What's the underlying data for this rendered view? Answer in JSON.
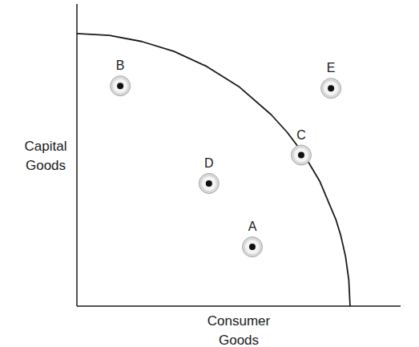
{
  "chart_data": {
    "type": "scatter",
    "x_label": "Consumer Goods",
    "y_label": "Capital Goods",
    "xlim": [
      0,
      10
    ],
    "ylim": [
      0,
      10
    ],
    "tick_labels": false,
    "grid": false,
    "series": [
      {
        "type": "line",
        "line_style": "solid",
        "color": "#1a1a1a",
        "x": [
          0,
          1,
          2,
          3,
          4,
          5,
          6,
          6.5,
          7,
          7.5,
          8,
          8.15,
          8.3,
          8.4,
          8.44
        ],
        "values": [
          9.02,
          8.96,
          8.76,
          8.43,
          7.94,
          7.27,
          6.34,
          5.75,
          5.04,
          4.14,
          2.87,
          2.35,
          1.64,
          0.87,
          0
        ]
      },
      {
        "type": "scatter",
        "marker": "circle",
        "color": "#111111",
        "labels": [
          "B",
          "E",
          "C",
          "D",
          "A"
        ],
        "x": [
          1.34,
          7.85,
          6.93,
          4.08,
          5.42
        ],
        "values": [
          7.29,
          7.21,
          5.0,
          4.06,
          1.96
        ]
      }
    ]
  }
}
